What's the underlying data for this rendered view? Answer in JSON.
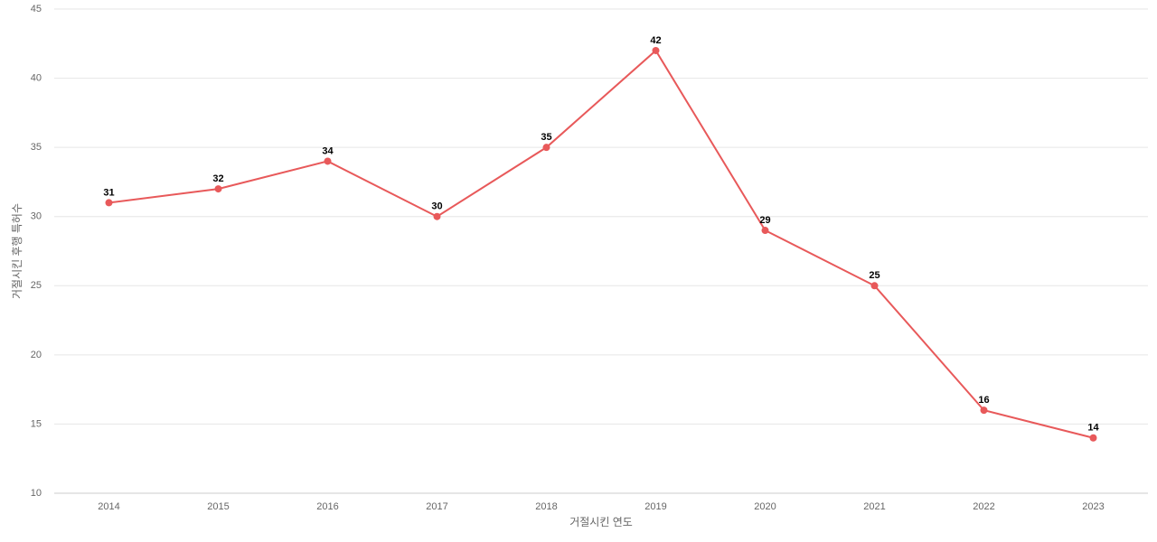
{
  "chart_data": {
    "type": "line",
    "x_label": "거절시킨 연도",
    "y_label": "거절시킨 후행 특허수",
    "categories": [
      "2014",
      "2015",
      "2016",
      "2017",
      "2018",
      "2019",
      "2020",
      "2021",
      "2022",
      "2023"
    ],
    "series": [
      {
        "color": "#e8595a",
        "values": [
          31,
          32,
          34,
          30,
          35,
          42,
          29,
          25,
          16,
          14
        ]
      }
    ],
    "ylim": [
      10,
      45
    ],
    "yticks": [
      10,
      15,
      20,
      25,
      30,
      35,
      40,
      45
    ],
    "grid": true
  }
}
